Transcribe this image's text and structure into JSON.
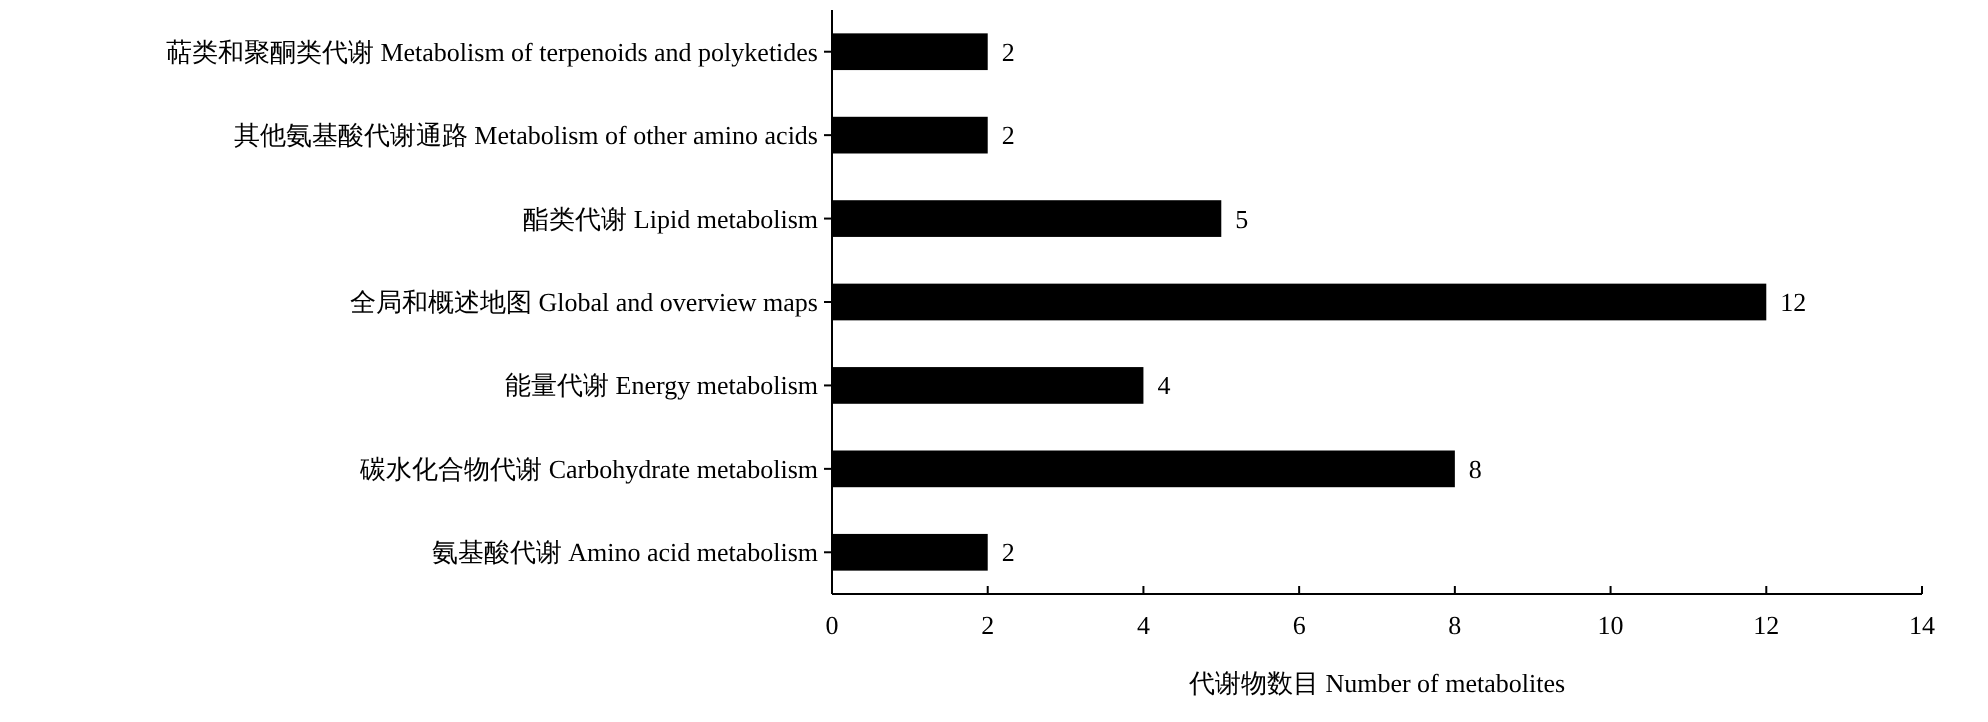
{
  "chart_data": {
    "type": "bar",
    "orientation": "horizontal",
    "xlabel": "代谢物数目 Number of metabolites",
    "categories": [
      "萜类和聚酮类代谢 Metabolism of terpenoids and polyketides",
      "其他氨基酸代谢通路 Metabolism of other amino acids",
      "酯类代谢 Lipid metabolism",
      "全局和概述地图 Global and overview maps",
      "能量代谢 Energy metabolism",
      "碳水化合物代谢 Carbohydrate metabolism",
      "氨基酸代谢 Amino acid metabolism"
    ],
    "values": [
      2,
      2,
      5,
      12,
      4,
      8,
      2
    ],
    "color": "#000000",
    "xlim": [
      0,
      14
    ],
    "xticks": [
      0,
      2,
      4,
      6,
      8,
      10,
      12,
      14
    ],
    "data_labels": true
  }
}
